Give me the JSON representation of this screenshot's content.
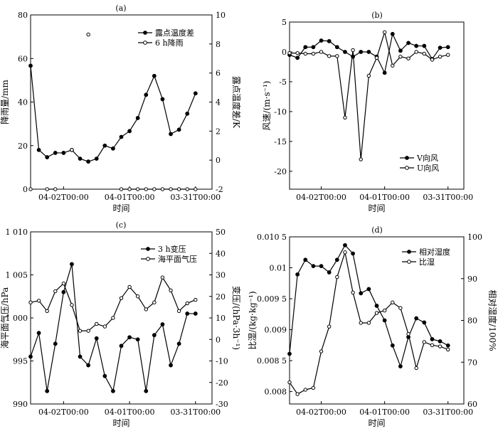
{
  "chart_data": [
    {
      "type": "line",
      "panel_label": "(a)",
      "xlabel": "时间",
      "ylabel_left": "降雨量/mm",
      "ylabel_right": "露点温度差/K",
      "x_ticks": [
        "04-02T00:00",
        "04-01T00:00",
        "03-31T00:00"
      ],
      "x_tick_index": [
        4,
        12,
        20
      ],
      "n_points": 23,
      "ylim_left": [
        0,
        80
      ],
      "yticks_left": [
        0,
        20,
        40,
        60,
        80
      ],
      "ylim_right": [
        -2,
        10
      ],
      "yticks_right": [
        -2,
        0,
        2,
        4,
        6,
        8,
        10
      ],
      "legend_position": "top-right",
      "series": [
        {
          "name": "露点温度差",
          "marker": "filled-circle",
          "axis": "right",
          "values": [
            6.5,
            0.7,
            0.2,
            0.5,
            0.5,
            0.7,
            0.1,
            -0.1,
            0.1,
            1.0,
            0.8,
            1.6,
            2.0,
            2.9,
            4.5,
            5.8,
            4.2,
            1.8,
            2.1,
            3.2,
            4.6,
            null,
            null
          ]
        },
        {
          "name": "6 h降雨",
          "marker": "open-circle",
          "axis": "left",
          "x_index": [
            0,
            2,
            3,
            5,
            7,
            11,
            12,
            13,
            14,
            15,
            16,
            17,
            18,
            19,
            20
          ],
          "values": [
            0,
            0,
            0,
            18,
            71,
            0,
            0,
            0,
            0,
            0,
            0,
            0,
            0,
            0,
            0
          ],
          "segments": [
            [
              2,
              3
            ],
            [
              11,
              20
            ]
          ]
        }
      ]
    },
    {
      "type": "line",
      "panel_label": "(b)",
      "xlabel": "时间",
      "ylabel": "风速/(m·s⁻¹)",
      "x_ticks": [
        "04-02T00:00",
        "04-01T00:00",
        "03-31T00:00"
      ],
      "x_tick_index": [
        4,
        12,
        20
      ],
      "n_points": 23,
      "ylim": [
        -23,
        5
      ],
      "yticks": [
        5,
        0,
        -5,
        -10,
        -15,
        -20
      ],
      "legend_position": "bottom-right",
      "series": [
        {
          "name": "V向风",
          "marker": "filled-circle",
          "values": [
            -0.5,
            -1.0,
            0.8,
            0.8,
            1.9,
            1.8,
            0.8,
            0.0,
            -0.8,
            0.0,
            0.0,
            -0.8,
            -3.5,
            3.0,
            0.2,
            1.5,
            1.0,
            1.0,
            -1.2,
            0.7,
            0.8,
            null,
            null
          ]
        },
        {
          "name": "U向风",
          "marker": "open-circle",
          "values": [
            -0.2,
            -0.2,
            -0.3,
            -0.3,
            0.0,
            -0.7,
            -0.7,
            -11.0,
            0.3,
            -18.0,
            -4.0,
            -1.0,
            3.3,
            -2.3,
            -0.8,
            -1.1,
            0.0,
            -0.3,
            -1.3,
            -0.8,
            -0.5,
            null,
            null
          ]
        }
      ]
    },
    {
      "type": "line",
      "panel_label": "(c)",
      "xlabel": "时间",
      "ylabel_left": "海平面气压/hPa",
      "ylabel_right": "变压/(hPa·3h⁻¹)",
      "x_ticks": [
        "04-02T00:00",
        "04-01T00:00",
        "03-31T00:00"
      ],
      "x_tick_index": [
        4,
        12,
        20
      ],
      "n_points": 23,
      "ylim_left": [
        990,
        1010
      ],
      "yticks_left": [
        990,
        995,
        1000,
        1005,
        1010
      ],
      "yticks_left_labels": [
        "990",
        "995",
        "1 000",
        "1 005",
        "1 010"
      ],
      "ylim_right": [
        -30,
        50
      ],
      "yticks_right": [
        -30,
        -20,
        -10,
        0,
        10,
        20,
        30,
        40,
        50
      ],
      "legend_position": "top-center",
      "series": [
        {
          "name": "3 h变压",
          "marker": "filled-circle",
          "axis": "right",
          "values": [
            -8.0,
            3.0,
            -24.0,
            -2.0,
            22.0,
            35.0,
            -8.0,
            -12.0,
            0.5,
            -17.0,
            -24.0,
            -3.0,
            1.0,
            0.0,
            -24.0,
            2.0,
            7.0,
            -12.0,
            -2.0,
            12.0,
            12.0,
            null,
            null
          ]
        },
        {
          "name": "海平面气压",
          "marker": "open-circle",
          "axis": "left",
          "values": [
            1001.8,
            1002.0,
            1000.8,
            1003.1,
            1004.0,
            1001.5,
            998.5,
            998.5,
            999.3,
            999.0,
            1000.0,
            1002.3,
            1003.6,
            1002.5,
            1001.0,
            1001.8,
            1004.7,
            1003.2,
            1000.8,
            1001.7,
            1002.1,
            null,
            null
          ]
        }
      ]
    },
    {
      "type": "line",
      "panel_label": "(d)",
      "xlabel": "时间",
      "ylabel_left": "比湿/(kg·kg⁻¹)",
      "ylabel_right": "相对湿度/100%",
      "x_ticks": [
        "04-02T00:00",
        "04-01T00:00",
        "03-31T00:00"
      ],
      "x_tick_index": [
        4,
        12,
        20
      ],
      "n_points": 23,
      "ylim_left": [
        0.0078,
        0.0105
      ],
      "yticks_left": [
        0.008,
        0.0085,
        0.009,
        0.0095,
        0.01,
        0.0105
      ],
      "yticks_left_labels": [
        "0.008",
        "0.008 5",
        "0.009",
        "0.009 5",
        "0.01",
        "0.010 5"
      ],
      "ylim_right": [
        60,
        100
      ],
      "yticks_right": [
        60,
        70,
        80,
        90,
        100
      ],
      "legend_position": "top-right",
      "series": [
        {
          "name": "相对湿度",
          "marker": "filled-circle",
          "axis": "right",
          "values": [
            72.0,
            91.0,
            94.5,
            93.0,
            93.0,
            91.5,
            94.5,
            98.0,
            96.0,
            86.5,
            87.5,
            83.5,
            80.0,
            74.0,
            69.0,
            76.0,
            80.5,
            79.5,
            75.5,
            75.0,
            74.0,
            null,
            null
          ]
        },
        {
          "name": "比湿",
          "marker": "open-circle",
          "axis": "left",
          "values": [
            0.00815,
            0.00796,
            0.00803,
            0.00806,
            0.00865,
            0.00905,
            0.00985,
            0.01025,
            0.0096,
            0.00911,
            0.00911,
            0.00927,
            0.00931,
            0.00944,
            0.00935,
            0.00893,
            0.00838,
            0.0088,
            0.00875,
            0.00873,
            0.00868,
            null,
            null
          ]
        }
      ]
    }
  ]
}
